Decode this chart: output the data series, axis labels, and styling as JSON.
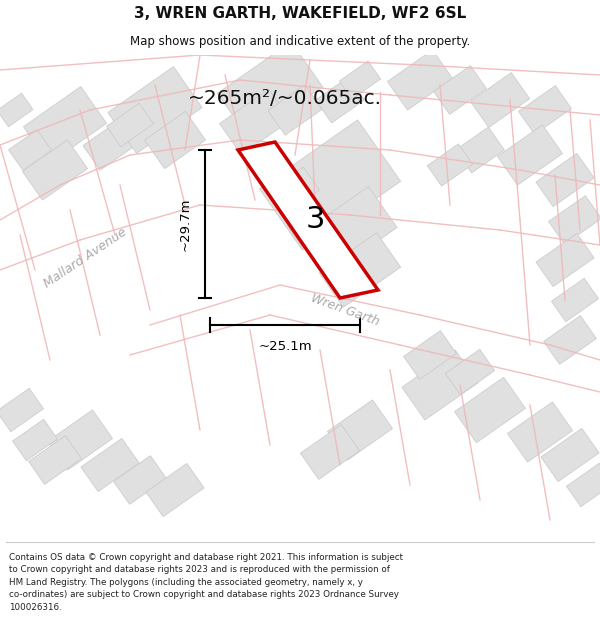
{
  "title": "3, WREN GARTH, WAKEFIELD, WF2 6SL",
  "subtitle": "Map shows position and indicative extent of the property.",
  "area_text": "~265m²/~0.065ac.",
  "dim_width": "~25.1m",
  "dim_height": "~29.7m",
  "label": "3",
  "street1": "Mallard Avenue",
  "street2": "Wren Garth",
  "footer": "Contains OS data © Crown copyright and database right 2021. This information is subject\nto Crown copyright and database rights 2023 and is reproduced with the permission of\nHM Land Registry. The polygons (including the associated geometry, namely x, y\nco-ordinates) are subject to Crown copyright and database rights 2023 Ordnance Survey\n100026316.",
  "map_bg": "#f5f5f5",
  "subject_color": "#cc0000",
  "subject_fill": "#ffffff",
  "building_fill": "#e0e0e0",
  "building_outline": "#c8c8c8",
  "pink_line_color": "#f0b8b8",
  "header_footer_bg": "#ffffff",
  "dim_color": "#333333",
  "street_color": "#aaaaaa",
  "text_color": "#111111"
}
